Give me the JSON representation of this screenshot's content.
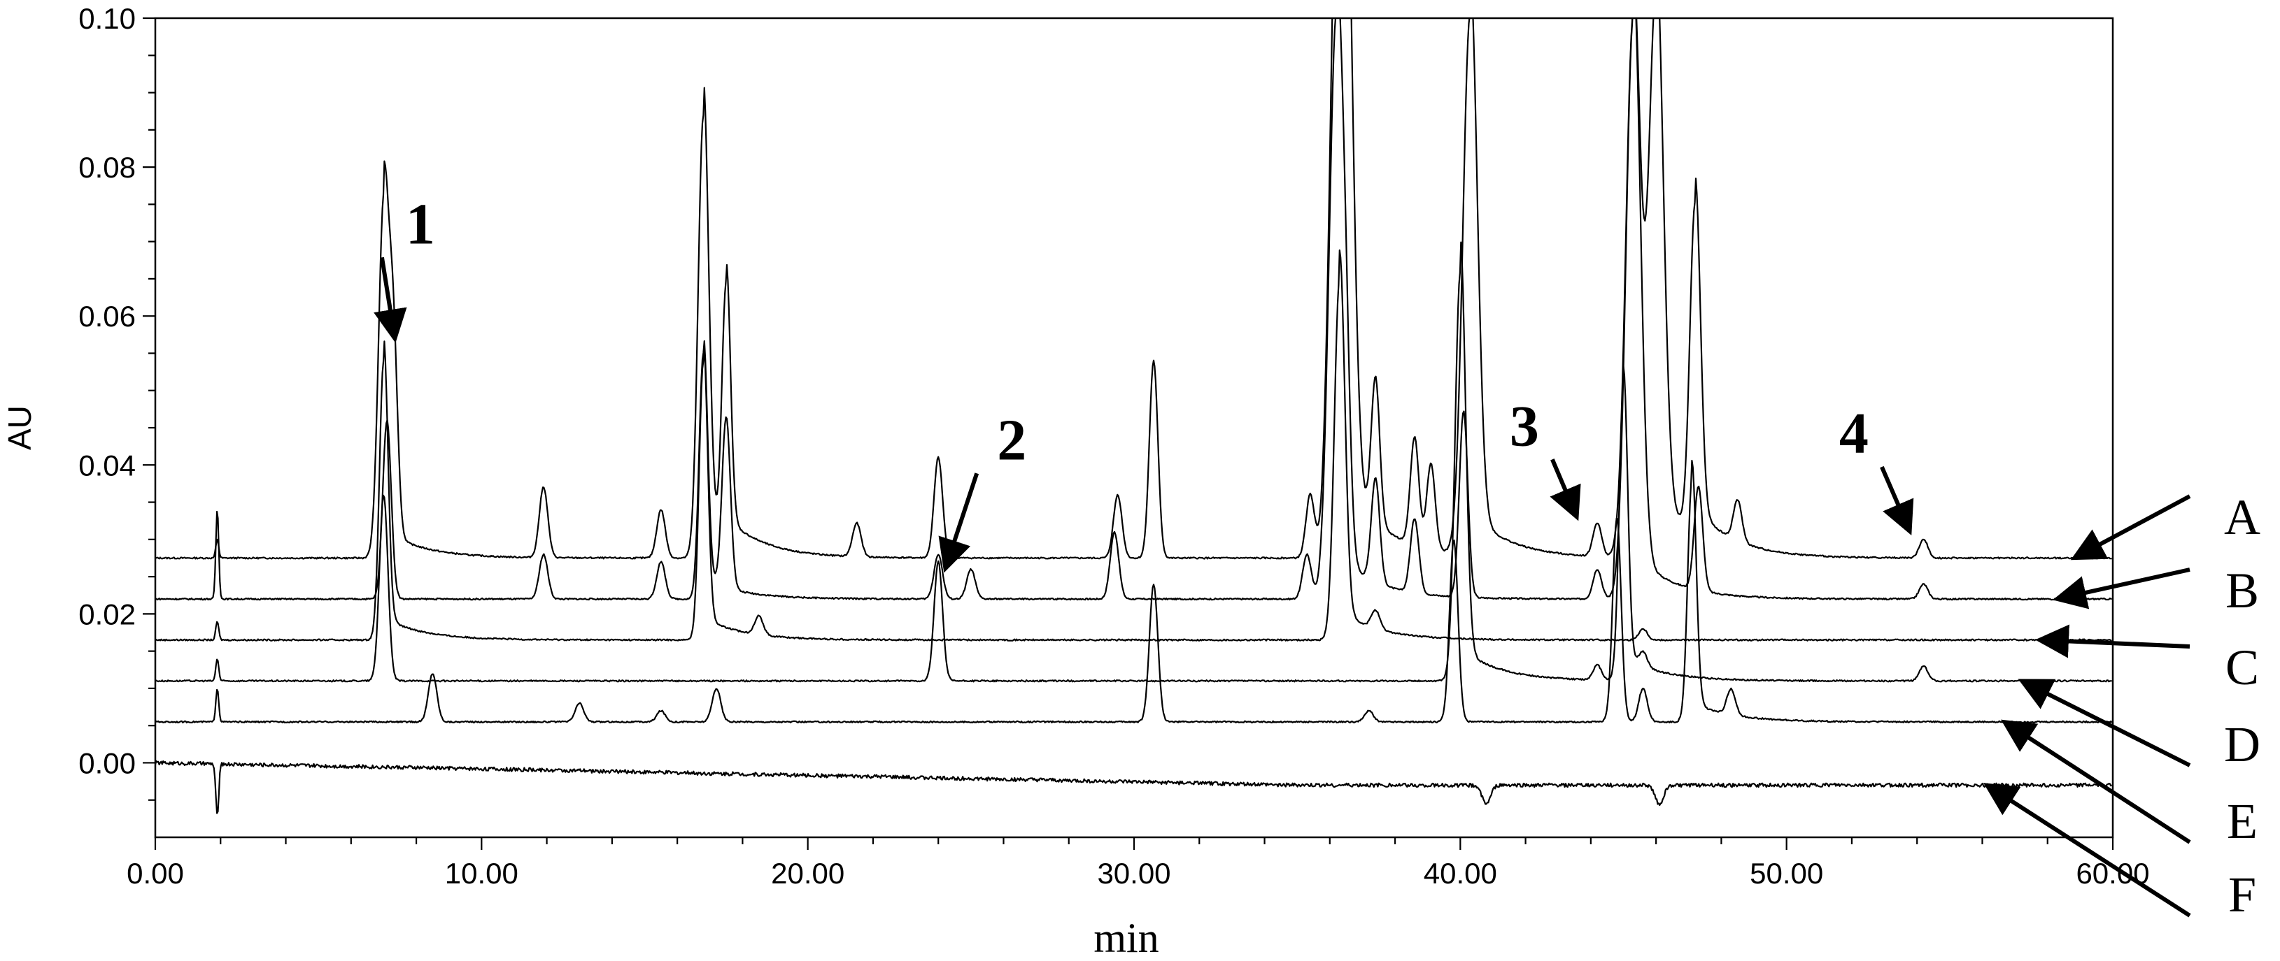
{
  "chart_data": {
    "type": "line",
    "xlabel": "min",
    "ylabel": "AU",
    "xlim": [
      0,
      60
    ],
    "ylim": [
      -0.01,
      0.1
    ],
    "x_ticks": [
      "0.00",
      "10.00",
      "20.00",
      "30.00",
      "40.00",
      "50.00",
      "60.00"
    ],
    "y_ticks": [
      "0.00",
      "0.02",
      "0.04",
      "0.06",
      "0.08",
      "0.10"
    ],
    "grid": false,
    "legend": "none",
    "series": [
      {
        "name": "A",
        "baseline": 0.0275,
        "peaks": [
          {
            "x": 1.9,
            "y": 0.03
          },
          {
            "x": 7.0,
            "y": 0.075
          },
          {
            "x": 7.3,
            "y": 0.052
          },
          {
            "x": 11.9,
            "y": 0.037
          },
          {
            "x": 15.5,
            "y": 0.034
          },
          {
            "x": 16.8,
            "y": 0.087
          },
          {
            "x": 17.5,
            "y": 0.062
          },
          {
            "x": 21.5,
            "y": 0.032
          },
          {
            "x": 24.0,
            "y": 0.041
          },
          {
            "x": 29.5,
            "y": 0.036
          },
          {
            "x": 30.6,
            "y": 0.054
          },
          {
            "x": 35.4,
            "y": 0.036
          },
          {
            "x": 36.2,
            "y": 0.1
          },
          {
            "x": 36.5,
            "y": 0.1
          },
          {
            "x": 37.4,
            "y": 0.047
          },
          {
            "x": 38.6,
            "y": 0.042
          },
          {
            "x": 39.1,
            "y": 0.039
          },
          {
            "x": 40.3,
            "y": 0.1
          },
          {
            "x": 44.2,
            "y": 0.032
          },
          {
            "x": 45.3,
            "y": 0.1
          },
          {
            "x": 46.0,
            "y": 0.1
          },
          {
            "x": 47.2,
            "y": 0.072
          },
          {
            "x": 48.5,
            "y": 0.033
          },
          {
            "x": 54.2,
            "y": 0.03
          }
        ]
      },
      {
        "name": "B",
        "baseline": 0.022,
        "peaks": [
          {
            "x": 1.9,
            "y": 0.034
          },
          {
            "x": 7.1,
            "y": 0.046
          },
          {
            "x": 11.9,
            "y": 0.028
          },
          {
            "x": 15.5,
            "y": 0.027
          },
          {
            "x": 16.8,
            "y": 0.055
          },
          {
            "x": 17.5,
            "y": 0.045
          },
          {
            "x": 24.0,
            "y": 0.028
          },
          {
            "x": 25.0,
            "y": 0.026
          },
          {
            "x": 29.4,
            "y": 0.031
          },
          {
            "x": 35.3,
            "y": 0.028
          },
          {
            "x": 36.2,
            "y": 0.1
          },
          {
            "x": 36.5,
            "y": 0.035
          },
          {
            "x": 37.4,
            "y": 0.036
          },
          {
            "x": 38.6,
            "y": 0.032
          },
          {
            "x": 40.1,
            "y": 0.047
          },
          {
            "x": 44.2,
            "y": 0.026
          },
          {
            "x": 45.3,
            "y": 0.1
          },
          {
            "x": 47.3,
            "y": 0.036
          },
          {
            "x": 54.2,
            "y": 0.024
          }
        ]
      },
      {
        "name": "C",
        "baseline": 0.0165,
        "peaks": [
          {
            "x": 1.9,
            "y": 0.019
          },
          {
            "x": 7.0,
            "y": 0.054
          },
          {
            "x": 16.8,
            "y": 0.054
          },
          {
            "x": 18.5,
            "y": 0.019
          },
          {
            "x": 36.3,
            "y": 0.065
          },
          {
            "x": 37.4,
            "y": 0.019
          },
          {
            "x": 45.6,
            "y": 0.018
          }
        ]
      },
      {
        "name": "D",
        "baseline": 0.011,
        "peaks": [
          {
            "x": 1.9,
            "y": 0.014
          },
          {
            "x": 7.0,
            "y": 0.036
          },
          {
            "x": 24.0,
            "y": 0.027
          },
          {
            "x": 40.0,
            "y": 0.066
          },
          {
            "x": 44.2,
            "y": 0.013
          },
          {
            "x": 45.0,
            "y": 0.05
          },
          {
            "x": 45.6,
            "y": 0.013
          },
          {
            "x": 54.2,
            "y": 0.013
          }
        ]
      },
      {
        "name": "E",
        "baseline": 0.0055,
        "peaks": [
          {
            "x": 1.9,
            "y": 0.01
          },
          {
            "x": 8.5,
            "y": 0.012
          },
          {
            "x": 13.0,
            "y": 0.008
          },
          {
            "x": 15.5,
            "y": 0.007
          },
          {
            "x": 17.2,
            "y": 0.01
          },
          {
            "x": 30.6,
            "y": 0.024
          },
          {
            "x": 37.2,
            "y": 0.007
          },
          {
            "x": 39.8,
            "y": 0.03
          },
          {
            "x": 44.8,
            "y": 0.033
          },
          {
            "x": 45.6,
            "y": 0.01
          },
          {
            "x": 47.1,
            "y": 0.038
          },
          {
            "x": 48.3,
            "y": 0.009
          }
        ]
      },
      {
        "name": "F",
        "baseline": 0.0,
        "peaks": [
          {
            "x": 1.9,
            "y": -0.007
          },
          {
            "x": 40.8,
            "y": -0.0025
          },
          {
            "x": 46.1,
            "y": -0.0025
          }
        ]
      }
    ],
    "annotations": [
      {
        "text": "1",
        "x": 7.3,
        "y": 0.056
      },
      {
        "text": "2",
        "x": 24.0,
        "y": 0.027
      },
      {
        "text": "3",
        "x": 44.0,
        "y": 0.033
      },
      {
        "text": "4",
        "x": 54.1,
        "y": 0.032
      }
    ]
  }
}
